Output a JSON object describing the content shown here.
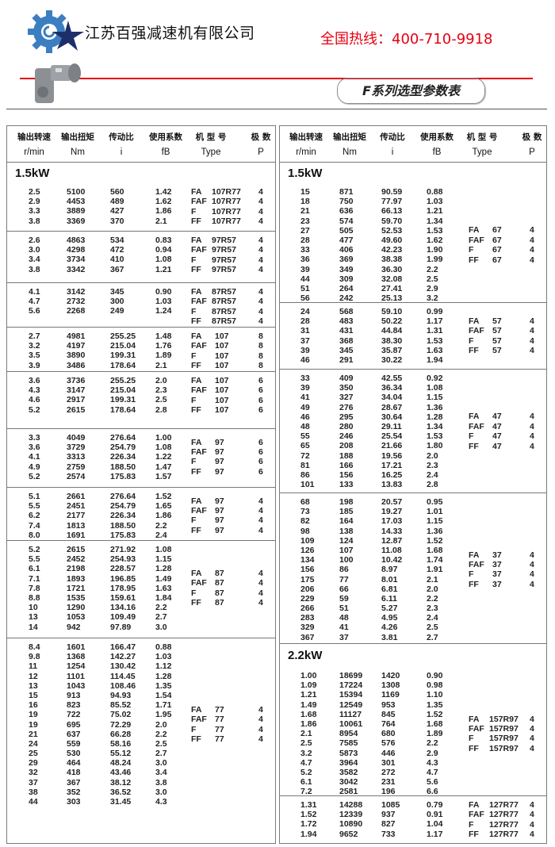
{
  "header": {
    "company_name": "江苏百强减速机有限公司",
    "hotline": "全国热线：400-710-9918",
    "title": "F系列选型参数表",
    "logo_icon": "gear-star-logo-icon",
    "product_image": "gearbox-image",
    "colors": {
      "accent_red": "#e60012",
      "logo_blue": "#3b7fc0",
      "logo_navy": "#1c2f6b"
    }
  },
  "columns": [
    {
      "cn": "输出转速",
      "en": "r/min"
    },
    {
      "cn": "输出扭矩",
      "en": "Nm"
    },
    {
      "cn": "传动比",
      "en": "i"
    },
    {
      "cn": "使用系数",
      "en": "fB"
    },
    {
      "cn": "机 型 号",
      "en": "Type"
    },
    {
      "cn": "极  数",
      "en": "P"
    }
  ],
  "left_table": {
    "groups": [
      {
        "title": "1.5kW",
        "rows": [
          [
            "2.5",
            "5100",
            "560",
            "1.42"
          ],
          [
            "2.9",
            "4453",
            "489",
            "1.62"
          ],
          [
            "3.3",
            "3889",
            "427",
            "1.86"
          ],
          [
            "3.8",
            "3369",
            "370",
            "2.1"
          ]
        ],
        "types": [
          [
            "FA",
            "107R77",
            "4"
          ],
          [
            "FAF",
            "107R77",
            "4"
          ],
          [
            "F",
            "107R77",
            "4"
          ],
          [
            "FF",
            "107R77",
            "4"
          ]
        ]
      },
      {
        "rows": [
          [
            "2.6",
            "4863",
            "534",
            "0.83"
          ],
          [
            "3.0",
            "4298",
            "472",
            "0.94"
          ],
          [
            "3.4",
            "3734",
            "410",
            "1.08"
          ],
          [
            "3.8",
            "3342",
            "367",
            "1.21"
          ]
        ],
        "types": [
          [
            "FA",
            "97R57",
            "4"
          ],
          [
            "FAF",
            "97R57",
            "4"
          ],
          [
            "F",
            "97R57",
            "4"
          ],
          [
            "FF",
            "97R57",
            "4"
          ]
        ]
      },
      {
        "rows": [
          [
            "4.1",
            "3142",
            "345",
            "0.90"
          ],
          [
            "4.7",
            "2732",
            "300",
            "1.03"
          ],
          [
            "5.6",
            "2268",
            "249",
            "1.24"
          ]
        ],
        "types": [
          [
            "FA",
            "87R57",
            "4"
          ],
          [
            "FAF",
            "87R57",
            "4"
          ],
          [
            "F",
            "87R57",
            "4"
          ],
          [
            "FF",
            "87R57",
            "4"
          ]
        ]
      },
      {
        "rows": [
          [
            "2.7",
            "4981",
            "255.25",
            "1.48"
          ],
          [
            "3.2",
            "4197",
            "215.04",
            "1.76"
          ],
          [
            "3.5",
            "3890",
            "199.31",
            "1.89"
          ],
          [
            "3.9",
            "3486",
            "178.64",
            "2.1"
          ]
        ],
        "types": [
          [
            "FA",
            "107",
            "8"
          ],
          [
            "FAF",
            "107",
            "8"
          ],
          [
            "F",
            "107",
            "8"
          ],
          [
            "FF",
            "107",
            "8"
          ]
        ]
      },
      {
        "rows": [
          [
            "3.6",
            "3736",
            "255.25",
            "2.0"
          ],
          [
            "4.3",
            "3147",
            "215.04",
            "2.3"
          ],
          [
            "4.6",
            "2917",
            "199.31",
            "2.5"
          ],
          [
            "5.2",
            "2615",
            "178.64",
            "2.8"
          ]
        ],
        "types": [
          [
            "FA",
            "107",
            "6"
          ],
          [
            "FAF",
            "107",
            "6"
          ],
          [
            "F",
            "107",
            "6"
          ],
          [
            "FF",
            "107",
            "6"
          ]
        ]
      },
      {
        "rows": [
          [
            "3.3",
            "4049",
            "276.64",
            "1.00"
          ],
          [
            "3.6",
            "3729",
            "254.79",
            "1.08"
          ],
          [
            "4.1",
            "3313",
            "226.34",
            "1.22"
          ],
          [
            "4.9",
            "2759",
            "188.50",
            "1.47"
          ],
          [
            "5.2",
            "2574",
            "175.83",
            "1.57"
          ]
        ],
        "types": [
          [
            "FA",
            "97",
            "6"
          ],
          [
            "FAF",
            "97",
            "6"
          ],
          [
            "F",
            "97",
            "6"
          ],
          [
            "FF",
            "97",
            "6"
          ]
        ]
      },
      {
        "rows": [
          [
            "5.1",
            "2661",
            "276.64",
            "1.52"
          ],
          [
            "5.5",
            "2451",
            "254.79",
            "1.65"
          ],
          [
            "6.2",
            "2177",
            "226.34",
            "1.86"
          ],
          [
            "7.4",
            "1813",
            "188.50",
            "2.2"
          ],
          [
            "8.0",
            "1691",
            "175.83",
            "2.4"
          ]
        ],
        "types": [
          [
            "FA",
            "97",
            "4"
          ],
          [
            "FAF",
            "97",
            "4"
          ],
          [
            "F",
            "97",
            "4"
          ],
          [
            "FF",
            "97",
            "4"
          ]
        ]
      },
      {
        "rows": [
          [
            "5.2",
            "2615",
            "271.92",
            "1.08"
          ],
          [
            "5.5",
            "2452",
            "254.93",
            "1.15"
          ],
          [
            "6.1",
            "2198",
            "228.57",
            "1.28"
          ],
          [
            "7.1",
            "1893",
            "196.85",
            "1.49"
          ],
          [
            "7.8",
            "1721",
            "178.95",
            "1.63"
          ],
          [
            "8.8",
            "1535",
            "159.61",
            "1.84"
          ],
          [
            "10",
            "1290",
            "134.16",
            "2.2"
          ],
          [
            "13",
            "1053",
            "109.49",
            "2.7"
          ],
          [
            "14",
            "942",
            "97.89",
            "3.0"
          ]
        ],
        "types": [
          [
            "FA",
            "87",
            "4"
          ],
          [
            "FAF",
            "87",
            "4"
          ],
          [
            "F",
            "87",
            "4"
          ],
          [
            "FF",
            "87",
            "4"
          ]
        ]
      },
      {
        "rows": [
          [
            "8.4",
            "1601",
            "166.47",
            "0.88"
          ],
          [
            "9.8",
            "1368",
            "142.27",
            "1.03"
          ],
          [
            "11",
            "1254",
            "130.42",
            "1.12"
          ],
          [
            "12",
            "1101",
            "114.45",
            "1.28"
          ],
          [
            "13",
            "1043",
            "108.46",
            "1.35"
          ],
          [
            "15",
            "913",
            "94.93",
            "1.54"
          ],
          [
            "16",
            "823",
            "85.52",
            "1.71"
          ],
          [
            "19",
            "722",
            "75.02",
            "1.95"
          ],
          [
            "19",
            "695",
            "72.29",
            "2.0"
          ],
          [
            "21",
            "637",
            "66.28",
            "2.2"
          ],
          [
            "24",
            "559",
            "58.16",
            "2.5"
          ],
          [
            "25",
            "530",
            "55.12",
            "2.7"
          ],
          [
            "29",
            "464",
            "48.24",
            "3.0"
          ],
          [
            "32",
            "418",
            "43.46",
            "3.4"
          ],
          [
            "37",
            "367",
            "38.12",
            "3.8"
          ],
          [
            "38",
            "352",
            "36.52",
            "3.0"
          ],
          [
            "44",
            "303",
            "31.45",
            "4.3"
          ]
        ],
        "types": [
          [
            "FA",
            "77",
            "4"
          ],
          [
            "FAF",
            "77",
            "4"
          ],
          [
            "F",
            "77",
            "4"
          ],
          [
            "FF",
            "77",
            "4"
          ]
        ]
      }
    ]
  },
  "right_table": {
    "groups": [
      {
        "title": "1.5kW",
        "rows": [
          [
            "15",
            "871",
            "90.59",
            "0.88"
          ],
          [
            "18",
            "750",
            "77.97",
            "1.03"
          ],
          [
            "21",
            "636",
            "66.13",
            "1.21"
          ],
          [
            "23",
            "574",
            "59.70",
            "1.34"
          ],
          [
            "27",
            "505",
            "52.53",
            "1.53"
          ],
          [
            "28",
            "477",
            "49.60",
            "1.62"
          ],
          [
            "33",
            "406",
            "42.23",
            "1.90"
          ],
          [
            "36",
            "369",
            "38.38",
            "1.99"
          ],
          [
            "39",
            "349",
            "36.30",
            "2.2"
          ],
          [
            "44",
            "309",
            "32.08",
            "2.5"
          ],
          [
            "51",
            "264",
            "27.41",
            "2.9"
          ],
          [
            "56",
            "242",
            "25.13",
            "3.2"
          ]
        ],
        "types": [
          [
            "FA",
            "67",
            "4"
          ],
          [
            "FAF",
            "67",
            "4"
          ],
          [
            "F",
            "67",
            "4"
          ],
          [
            "FF",
            "67",
            "4"
          ]
        ]
      },
      {
        "rows": [
          [
            "24",
            "568",
            "59.10",
            "0.99"
          ],
          [
            "28",
            "483",
            "50.22",
            "1.17"
          ],
          [
            "31",
            "431",
            "44.84",
            "1.31"
          ],
          [
            "37",
            "368",
            "38.30",
            "1.53"
          ],
          [
            "39",
            "345",
            "35.87",
            "1.63"
          ],
          [
            "46",
            "291",
            "30.22",
            "1.94"
          ]
        ],
        "types": [
          [
            "FA",
            "57",
            "4"
          ],
          [
            "FAF",
            "57",
            "4"
          ],
          [
            "F",
            "57",
            "4"
          ],
          [
            "FF",
            "57",
            "4"
          ]
        ]
      },
      {
        "rows": [
          [
            "33",
            "409",
            "42.55",
            "0.92"
          ],
          [
            "39",
            "350",
            "36.34",
            "1.08"
          ],
          [
            "41",
            "327",
            "34.04",
            "1.15"
          ],
          [
            "49",
            "276",
            "28.67",
            "1.36"
          ],
          [
            "46",
            "295",
            "30.64",
            "1.28"
          ],
          [
            "48",
            "280",
            "29.11",
            "1.34"
          ],
          [
            "55",
            "246",
            "25.54",
            "1.53"
          ],
          [
            "65",
            "208",
            "21.66",
            "1.80"
          ],
          [
            "72",
            "188",
            "19.56",
            "2.0"
          ],
          [
            "81",
            "166",
            "17.21",
            "2.3"
          ],
          [
            "86",
            "156",
            "16.25",
            "2.4"
          ],
          [
            "101",
            "133",
            "13.83",
            "2.8"
          ]
        ],
        "types": [
          [
            "FA",
            "47",
            "4"
          ],
          [
            "FAF",
            "47",
            "4"
          ],
          [
            "F",
            "47",
            "4"
          ],
          [
            "FF",
            "47",
            "4"
          ]
        ]
      },
      {
        "rows": [
          [
            "68",
            "198",
            "20.57",
            "0.95"
          ],
          [
            "73",
            "185",
            "19.27",
            "1.01"
          ],
          [
            "82",
            "164",
            "17.03",
            "1.15"
          ],
          [
            "98",
            "138",
            "14.33",
            "1.36"
          ],
          [
            "109",
            "124",
            "12.87",
            "1.52"
          ],
          [
            "126",
            "107",
            "11.08",
            "1.68"
          ],
          [
            "134",
            "100",
            "10.42",
            "1.74"
          ],
          [
            "156",
            "86",
            "8.97",
            "1.91"
          ],
          [
            "175",
            "77",
            "8.01",
            "2.1"
          ],
          [
            "206",
            "66",
            "6.81",
            "2.0"
          ],
          [
            "229",
            "59",
            "6.11",
            "2.2"
          ],
          [
            "266",
            "51",
            "5.27",
            "2.3"
          ],
          [
            "283",
            "48",
            "4.95",
            "2.4"
          ],
          [
            "329",
            "41",
            "4.26",
            "2.5"
          ],
          [
            "367",
            "37",
            "3.81",
            "2.7"
          ]
        ],
        "types": [
          [
            "FA",
            "37",
            "4"
          ],
          [
            "FAF",
            "37",
            "4"
          ],
          [
            "F",
            "37",
            "4"
          ],
          [
            "FF",
            "37",
            "4"
          ]
        ]
      },
      {
        "title": "2.2kW",
        "rows": [
          [
            "1.00",
            "18699",
            "1420",
            "0.90"
          ],
          [
            "1.09",
            "17224",
            "1308",
            "0.98"
          ],
          [
            "1.21",
            "15394",
            "1169",
            "1.10"
          ],
          [
            "1.49",
            "12549",
            "953",
            "1.35"
          ],
          [
            "1.68",
            "11127",
            "845",
            "1.52"
          ],
          [
            "1.86",
            "10061",
            "764",
            "1.68"
          ],
          [
            "2.1",
            "8954",
            "680",
            "1.89"
          ],
          [
            "2.5",
            "7585",
            "576",
            "2.2"
          ],
          [
            "3.2",
            "5873",
            "446",
            "2.9"
          ],
          [
            "4.7",
            "3964",
            "301",
            "4.3"
          ],
          [
            "5.2",
            "3582",
            "272",
            "4.7"
          ],
          [
            "6.1",
            "3042",
            "231",
            "5.6"
          ],
          [
            "7.2",
            "2581",
            "196",
            "6.6"
          ]
        ],
        "types": [
          [
            "FA",
            "157R97",
            "4"
          ],
          [
            "FAF",
            "157R97",
            "4"
          ],
          [
            "F",
            "157R97",
            "4"
          ],
          [
            "FF",
            "157R97",
            "4"
          ]
        ]
      },
      {
        "rows": [
          [
            "1.31",
            "14288",
            "1085",
            "0.79"
          ],
          [
            "1.52",
            "12339",
            "937",
            "0.91"
          ],
          [
            "1.72",
            "10890",
            "827",
            "1.04"
          ],
          [
            "1.94",
            "9652",
            "733",
            "1.17"
          ]
        ],
        "types": [
          [
            "FA",
            "127R77",
            "4"
          ],
          [
            "FAF",
            "127R77",
            "4"
          ],
          [
            "F",
            "127R77",
            "4"
          ],
          [
            "FF",
            "127R77",
            "4"
          ]
        ]
      }
    ]
  }
}
